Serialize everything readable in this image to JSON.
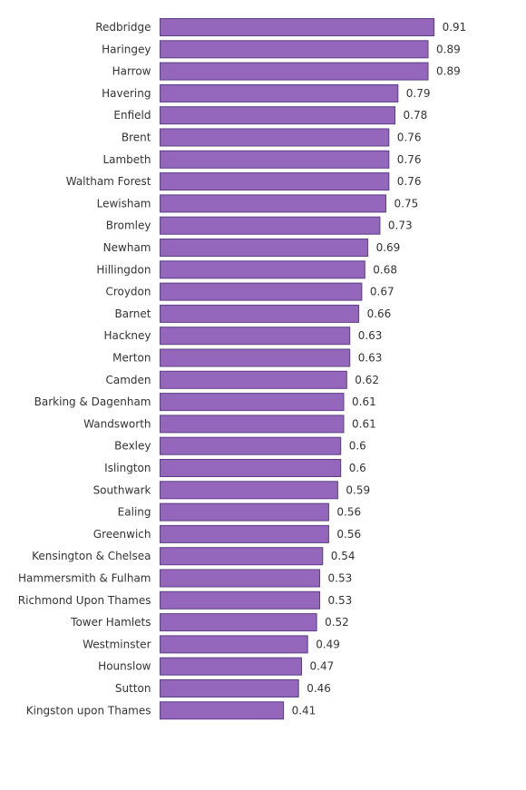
{
  "chart_data": {
    "type": "bar",
    "orientation": "horizontal",
    "title": "",
    "xlabel": "",
    "ylabel": "",
    "xlim": [
      0,
      1.1
    ],
    "grid": false,
    "legend": "none",
    "bar_color": "#9467bd",
    "bar_stroke": "#5a3f82",
    "categories": [
      "Redbridge",
      "Haringey",
      "Harrow",
      "Havering",
      "Enfield",
      "Brent",
      "Lambeth",
      "Waltham Forest",
      "Lewisham",
      "Bromley",
      "Newham",
      "Hillingdon",
      "Croydon",
      "Barnet",
      "Hackney",
      "Merton",
      "Camden",
      "Barking & Dagenham",
      "Wandsworth",
      "Bexley",
      "Islington",
      "Southwark",
      "Ealing",
      "Greenwich",
      "Kensington & Chelsea",
      "Hammersmith & Fulham",
      "Richmond Upon Thames",
      "Tower Hamlets",
      "Westminster",
      "Hounslow",
      "Sutton",
      "Kingston upon Thames"
    ],
    "values": [
      0.91,
      0.89,
      0.89,
      0.79,
      0.78,
      0.76,
      0.76,
      0.76,
      0.75,
      0.73,
      0.69,
      0.68,
      0.67,
      0.66,
      0.63,
      0.63,
      0.62,
      0.61,
      0.61,
      0.6,
      0.6,
      0.59,
      0.56,
      0.56,
      0.54,
      0.53,
      0.53,
      0.52,
      0.49,
      0.47,
      0.46,
      0.41
    ],
    "value_labels": [
      "0.91",
      "0.89",
      "0.89",
      "0.79",
      "0.78",
      "0.76",
      "0.76",
      "0.76",
      "0.75",
      "0.73",
      "0.69",
      "0.68",
      "0.67",
      "0.66",
      "0.63",
      "0.63",
      "0.62",
      "0.61",
      "0.61",
      "0.6",
      "0.6",
      "0.59",
      "0.56",
      "0.56",
      "0.54",
      "0.53",
      "0.53",
      "0.52",
      "0.49",
      "0.47",
      "0.46",
      "0.41"
    ]
  }
}
